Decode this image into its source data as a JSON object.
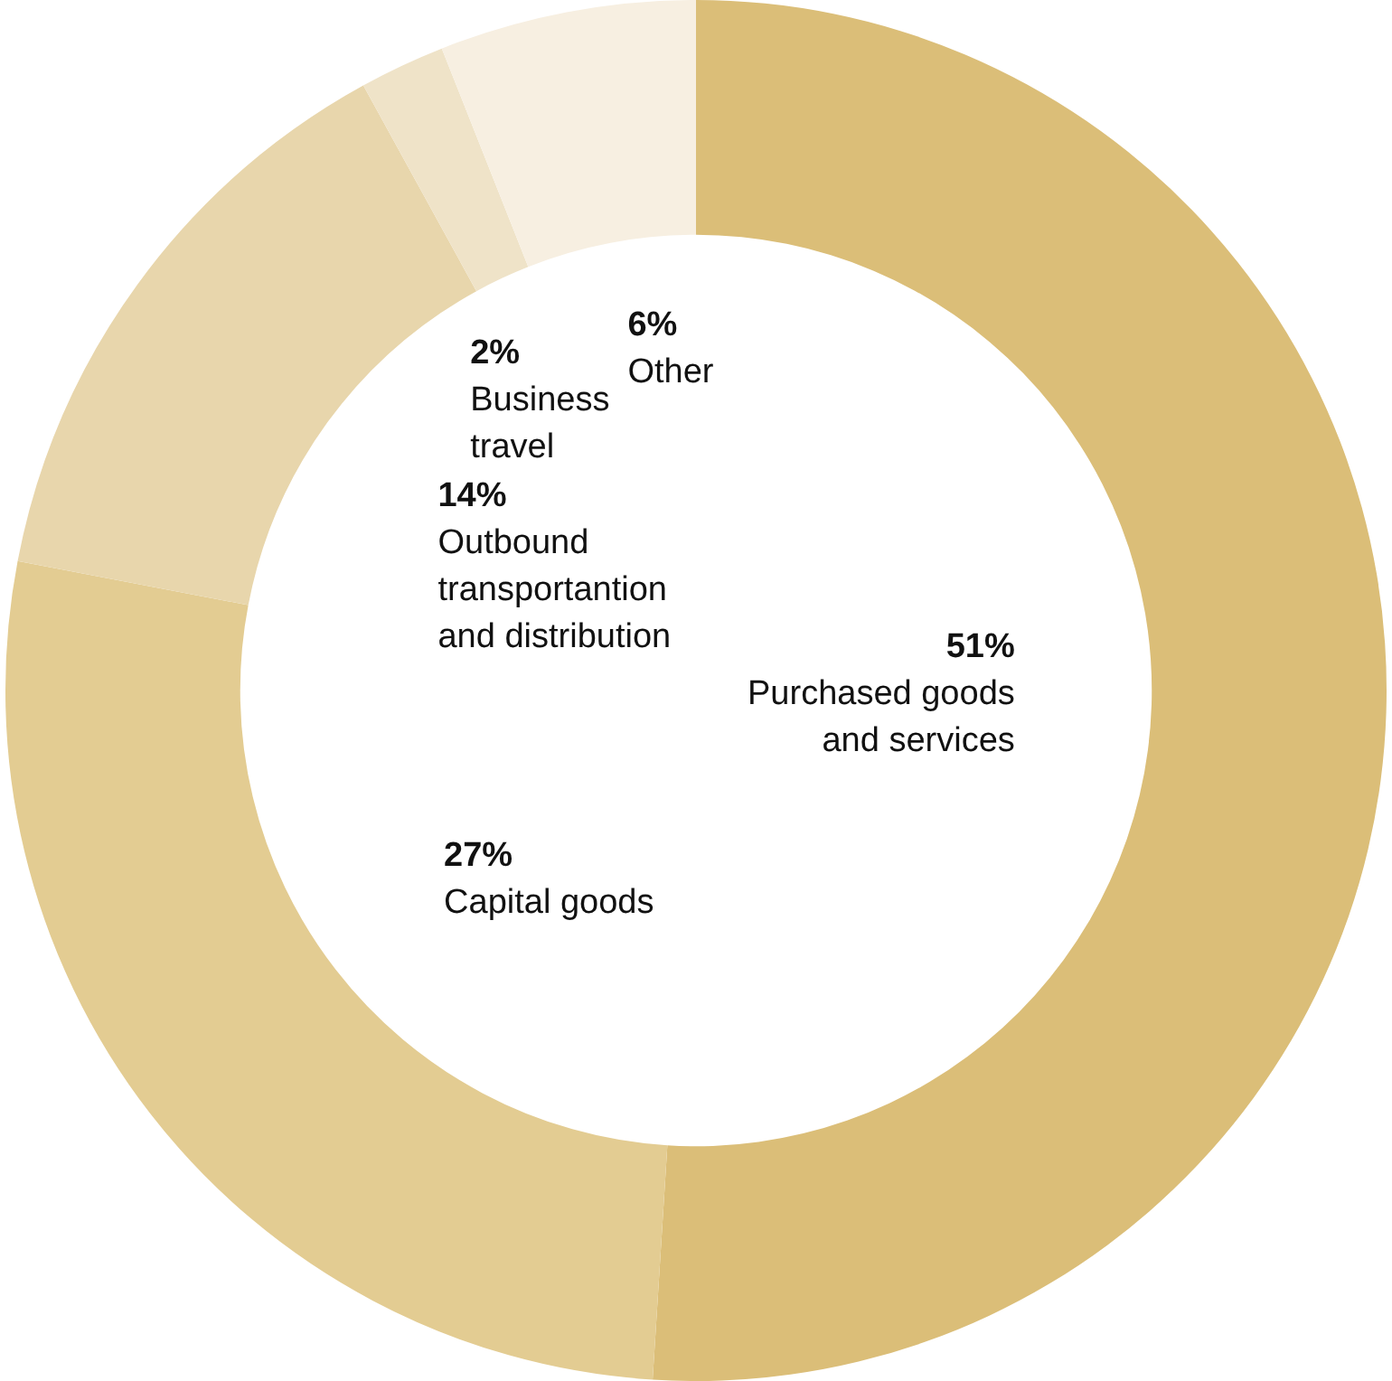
{
  "chart_data": {
    "type": "donut",
    "categories": [
      "Purchased goods and services",
      "Capital goods",
      "Outbound transportantion and distribution",
      "Business travel",
      "Other"
    ],
    "values": [
      51,
      27,
      14,
      2,
      6
    ],
    "value_labels": [
      "51%",
      "27%",
      "14%",
      "2%",
      "6%"
    ],
    "colors": [
      "#dbbe78",
      "#e3cc92",
      "#e8d6ac",
      "#efe3c8",
      "#f7efe1"
    ],
    "legend": false
  }
}
